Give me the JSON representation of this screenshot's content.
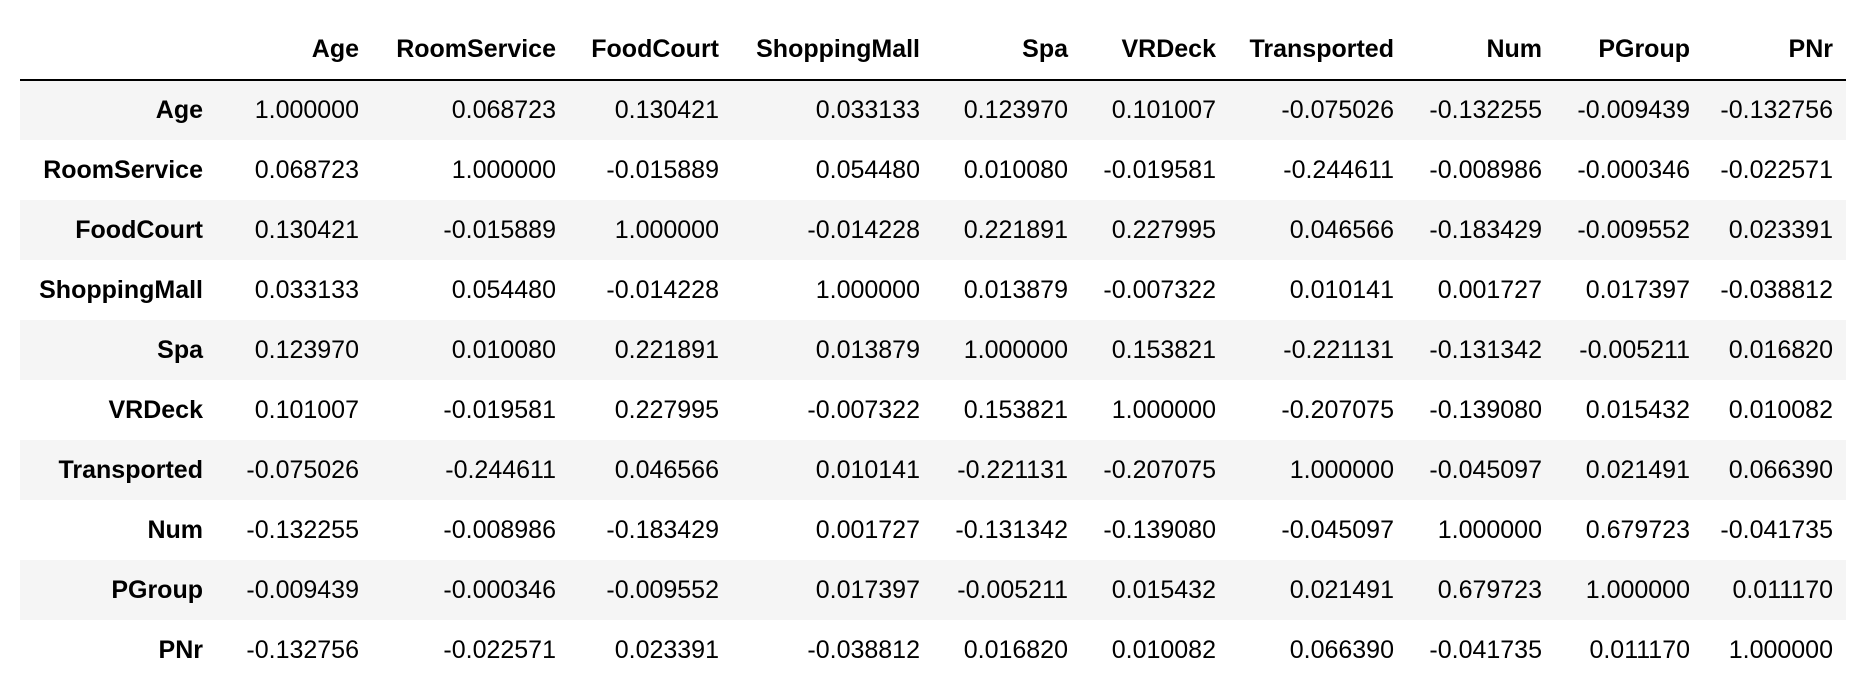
{
  "table": {
    "columns": [
      "Age",
      "RoomService",
      "FoodCourt",
      "ShoppingMall",
      "Spa",
      "VRDeck",
      "Transported",
      "Num",
      "PGroup",
      "PNr"
    ],
    "rows": [
      {
        "label": "Age",
        "values": [
          "1.000000",
          "0.068723",
          "0.130421",
          "0.033133",
          "0.123970",
          "0.101007",
          "-0.075026",
          "-0.132255",
          "-0.009439",
          "-0.132756"
        ]
      },
      {
        "label": "RoomService",
        "values": [
          "0.068723",
          "1.000000",
          "-0.015889",
          "0.054480",
          "0.010080",
          "-0.019581",
          "-0.244611",
          "-0.008986",
          "-0.000346",
          "-0.022571"
        ]
      },
      {
        "label": "FoodCourt",
        "values": [
          "0.130421",
          "-0.015889",
          "1.000000",
          "-0.014228",
          "0.221891",
          "0.227995",
          "0.046566",
          "-0.183429",
          "-0.009552",
          "0.023391"
        ]
      },
      {
        "label": "ShoppingMall",
        "values": [
          "0.033133",
          "0.054480",
          "-0.014228",
          "1.000000",
          "0.013879",
          "-0.007322",
          "0.010141",
          "0.001727",
          "0.017397",
          "-0.038812"
        ]
      },
      {
        "label": "Spa",
        "values": [
          "0.123970",
          "0.010080",
          "0.221891",
          "0.013879",
          "1.000000",
          "0.153821",
          "-0.221131",
          "-0.131342",
          "-0.005211",
          "0.016820"
        ]
      },
      {
        "label": "VRDeck",
        "values": [
          "0.101007",
          "-0.019581",
          "0.227995",
          "-0.007322",
          "0.153821",
          "1.000000",
          "-0.207075",
          "-0.139080",
          "0.015432",
          "0.010082"
        ]
      },
      {
        "label": "Transported",
        "values": [
          "-0.075026",
          "-0.244611",
          "0.046566",
          "0.010141",
          "-0.221131",
          "-0.207075",
          "1.000000",
          "-0.045097",
          "0.021491",
          "0.066390"
        ]
      },
      {
        "label": "Num",
        "values": [
          "-0.132255",
          "-0.008986",
          "-0.183429",
          "0.001727",
          "-0.131342",
          "-0.139080",
          "-0.045097",
          "1.000000",
          "0.679723",
          "-0.041735"
        ]
      },
      {
        "label": "PGroup",
        "values": [
          "-0.009439",
          "-0.000346",
          "-0.009552",
          "0.017397",
          "-0.005211",
          "0.015432",
          "0.021491",
          "0.679723",
          "1.000000",
          "0.011170"
        ]
      },
      {
        "label": "PNr",
        "values": [
          "-0.132756",
          "-0.022571",
          "0.023391",
          "-0.038812",
          "0.016820",
          "0.010082",
          "0.066390",
          "-0.041735",
          "0.011170",
          "1.000000"
        ]
      }
    ]
  },
  "colors": {
    "stripe": "#f5f5f5",
    "background": "#ffffff",
    "text": "#000000",
    "rule": "#000000"
  }
}
